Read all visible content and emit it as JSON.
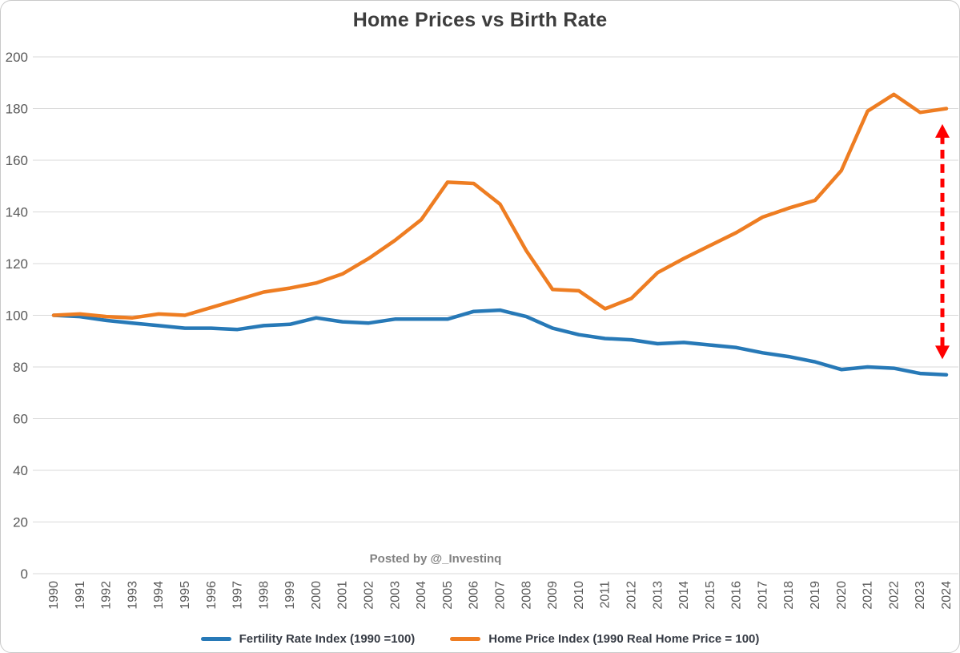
{
  "chart_data": {
    "type": "line",
    "title": "Home Prices vs Birth Rate",
    "watermark": "Posted by @_Investinq",
    "categories": [
      1990,
      1991,
      1992,
      1993,
      1994,
      1995,
      1996,
      1997,
      1998,
      1999,
      2000,
      2001,
      2002,
      2003,
      2004,
      2005,
      2006,
      2007,
      2008,
      2009,
      2010,
      2011,
      2012,
      2013,
      2014,
      2015,
      2016,
      2017,
      2018,
      2019,
      2020,
      2021,
      2022,
      2023,
      2024
    ],
    "series": [
      {
        "id": "fertility-rate",
        "name": "Fertility Rate Index (1990 =100)",
        "color": "#2779b7",
        "values": [
          100,
          99.5,
          98,
          97,
          96,
          95,
          95,
          94.5,
          96,
          96.5,
          99,
          97.5,
          97,
          98.5,
          98.5,
          98.5,
          101.5,
          102,
          99.5,
          95,
          92.5,
          91,
          90.5,
          89,
          89.5,
          88.5,
          87.5,
          85.5,
          84,
          82,
          79,
          80,
          79.5,
          77.5,
          77
        ]
      },
      {
        "id": "home-price",
        "name": "Home Price Index (1990 Real Home Price = 100)",
        "color": "#ee7d22",
        "values": [
          100,
          100.5,
          99.5,
          99,
          100.5,
          100,
          103,
          106,
          109,
          110.5,
          112.5,
          116,
          122,
          129,
          137,
          151.5,
          151,
          143,
          125,
          110,
          109.5,
          102.5,
          106.5,
          116.5,
          122,
          127,
          132,
          138,
          141.5,
          144.5,
          156,
          179,
          185.5,
          178.5,
          180
        ]
      }
    ],
    "ylim": [
      0,
      200
    ],
    "ytick_step": 20,
    "grid": true,
    "grid_color": "#d9d9d9",
    "legend_position": "bottom",
    "annotations": [
      {
        "type": "double_arrow",
        "style": "dashed",
        "color": "#ff0000",
        "at_category": 2024,
        "y_from": 83,
        "y_to": 174
      }
    ]
  }
}
